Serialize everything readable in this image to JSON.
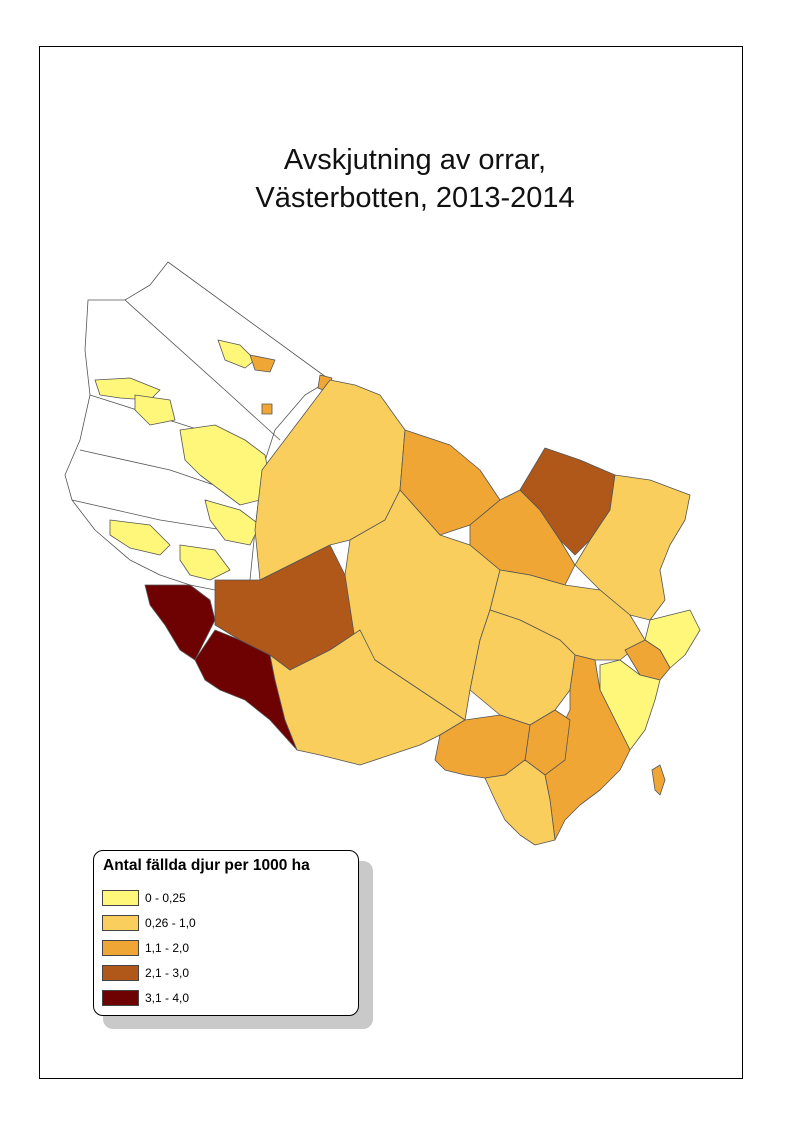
{
  "title": {
    "line1": "Avskjutning av orrar,",
    "line2": "Västerbotten, 2013-2014"
  },
  "legend": {
    "title": "Antal fällda djur per 1000 ha",
    "classes": [
      {
        "label": "0 - 0,25",
        "color": "#FFF77A"
      },
      {
        "label": "0,26 - 1,0",
        "color": "#F9CE5C"
      },
      {
        "label": "1,1 - 2,0",
        "color": "#EFA635"
      },
      {
        "label": "2,1 - 3,0",
        "color": "#B0581A"
      },
      {
        "label": "3,1 - 4,0",
        "color": "#6E0101"
      }
    ]
  },
  "colors": {
    "no_data": "#FFFFFF",
    "boundary": "#555555"
  }
}
